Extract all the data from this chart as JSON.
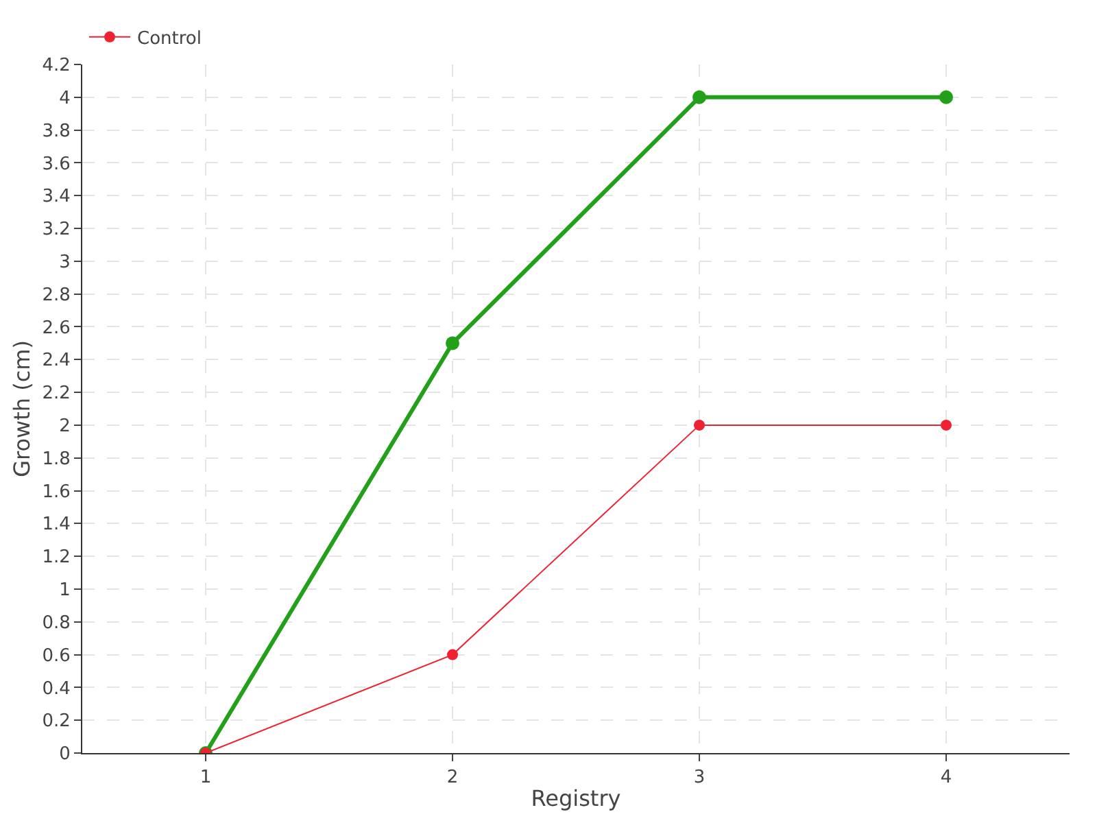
{
  "chart_data": {
    "type": "line",
    "xlabel": "Registry",
    "ylabel": "Growth (cm)",
    "categories": [
      "1",
      "2",
      "3",
      "4"
    ],
    "series": [
      {
        "color": "#22a01a",
        "values": [
          0,
          2.5,
          4,
          4
        ]
      },
      {
        "name": "Control",
        "color": "#ee2233",
        "values": [
          0,
          0.6,
          2,
          2
        ]
      }
    ],
    "ylim": [
      0,
      4.2
    ],
    "yticks": [
      0,
      0.2,
      0.4,
      0.6,
      0.8,
      1,
      1.2,
      1.4,
      1.6,
      1.8,
      2,
      2.2,
      2.4,
      2.6,
      2.8,
      3,
      3.2,
      3.4,
      3.6,
      3.8,
      4,
      4.2
    ],
    "grid": true,
    "legend": "top left",
    "marker": "circle",
    "line_style": "solid"
  }
}
